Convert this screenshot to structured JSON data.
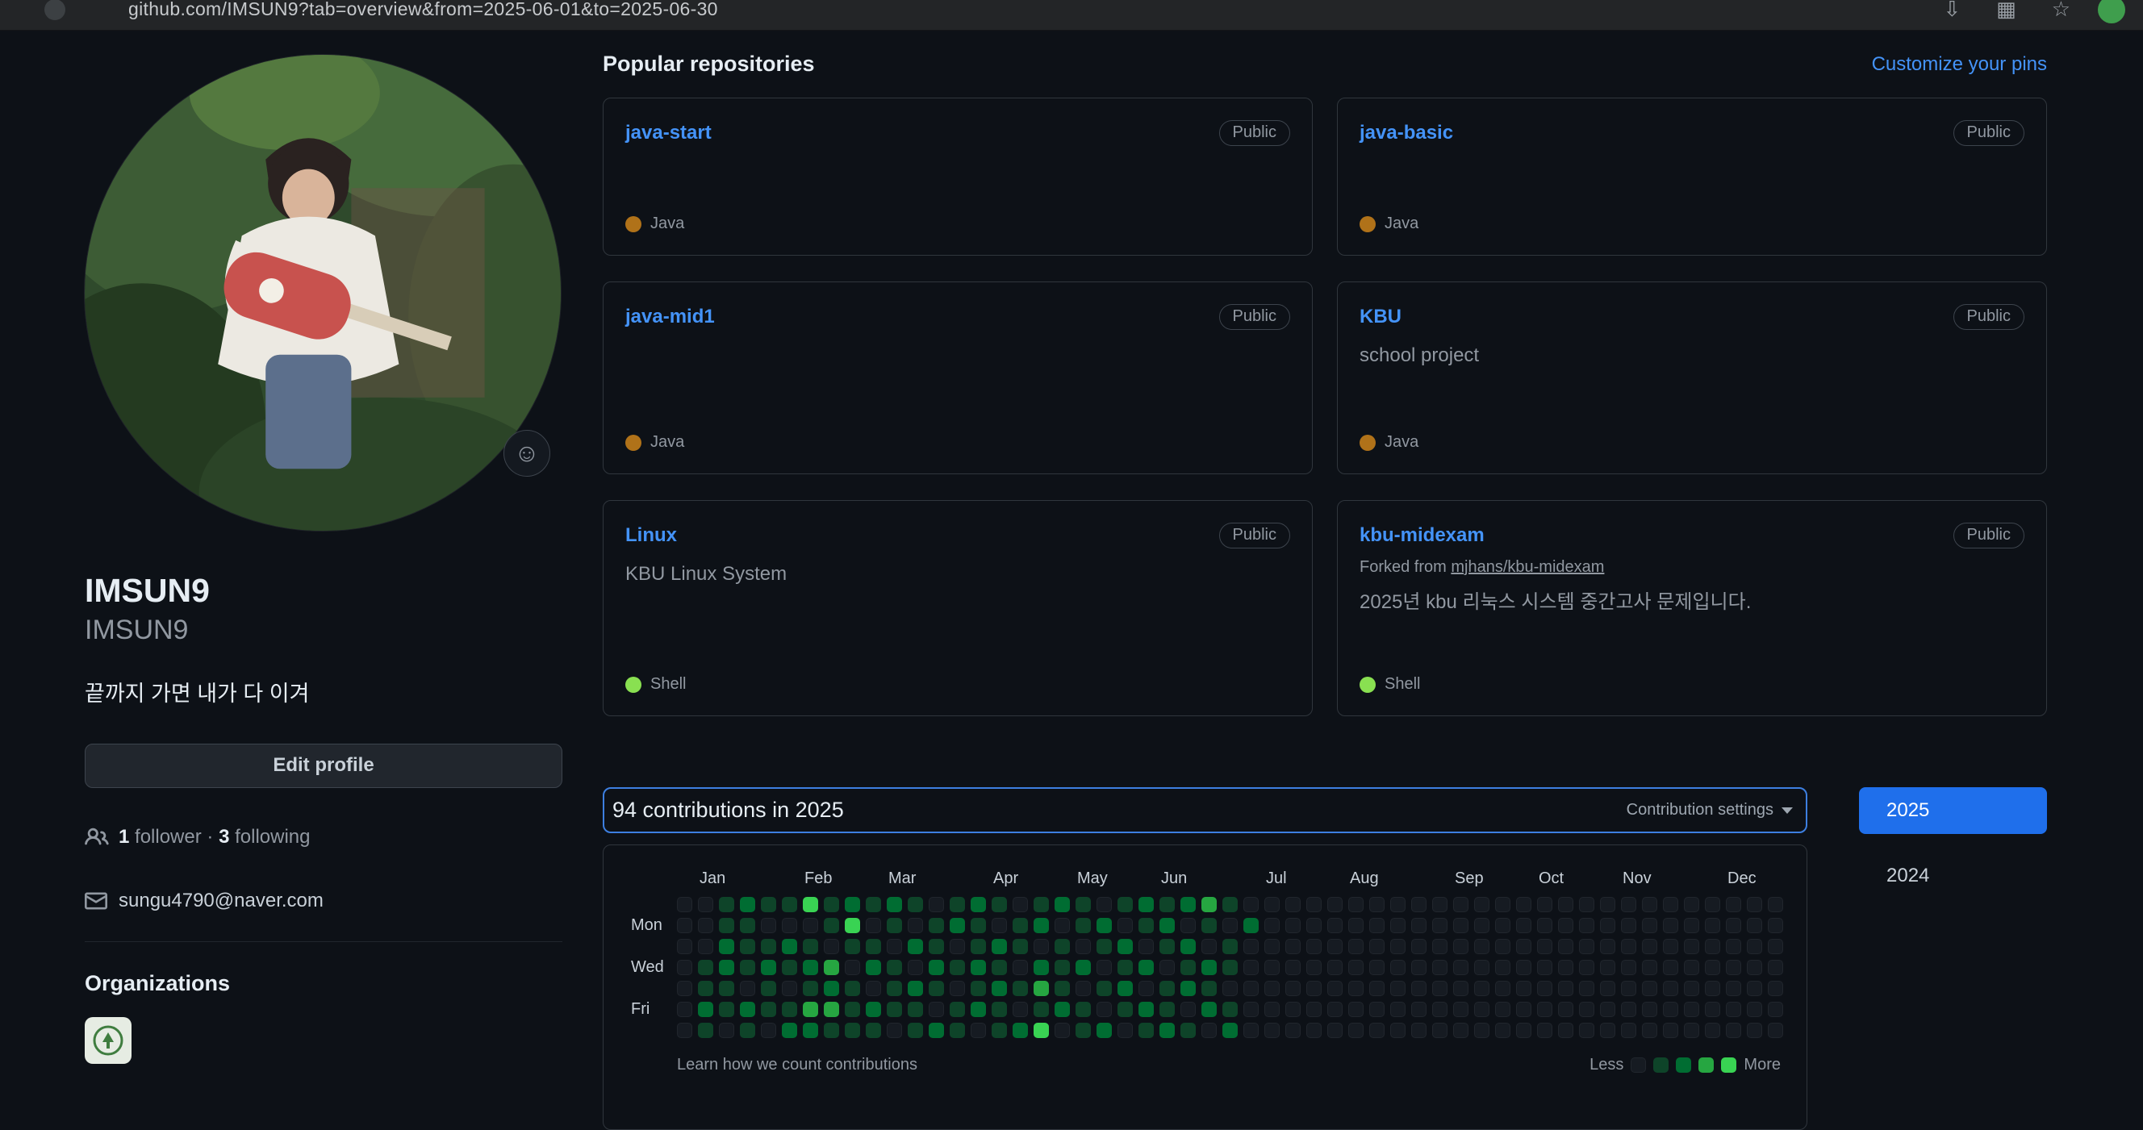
{
  "browser": {
    "url": "github.com/IMSUN9?tab=overview&from=2025-06-01&to=2025-06-30"
  },
  "profile": {
    "name": "IMSUN9",
    "login": "IMSUN9",
    "bio": "끝까지 가면 내가 다 이겨",
    "edit_button": "Edit profile",
    "follower_count": "1",
    "follower_label": "follower",
    "dot_separator": "·",
    "following_count": "3",
    "following_label": "following",
    "email": "sungu4790@naver.com",
    "organizations_title": "Organizations",
    "smiley": "☺"
  },
  "main": {
    "popular_title": "Popular repositories",
    "customize_pins": "Customize your pins",
    "repos": [
      {
        "name": "java-start",
        "visibility": "Public",
        "description": "",
        "language": "Java",
        "language_color": "#b07219"
      },
      {
        "name": "java-basic",
        "visibility": "Public",
        "description": "",
        "language": "Java",
        "language_color": "#b07219"
      },
      {
        "name": "java-mid1",
        "visibility": "Public",
        "description": "",
        "language": "Java",
        "language_color": "#b07219"
      },
      {
        "name": "KBU",
        "visibility": "Public",
        "description": "school project",
        "language": "Java",
        "language_color": "#b07219"
      },
      {
        "name": "Linux",
        "visibility": "Public",
        "description": "KBU Linux System",
        "language": "Shell",
        "language_color": "#89e051"
      },
      {
        "name": "kbu-midexam",
        "visibility": "Public",
        "forked_from": "Forked from ",
        "forked_repo": "mjhans/kbu-midexam",
        "description": "2025년 kbu 리눅스 시스템 중간고사 문제입니다.",
        "language": "Shell",
        "language_color": "#89e051"
      }
    ]
  },
  "contributions": {
    "title": "94 contributions in 2025",
    "total": 94,
    "year": "2025",
    "settings_label": "Contribution settings",
    "learn_link": "Learn how we count contributions",
    "less_label": "Less",
    "more_label": "More",
    "day_labels": [
      "Mon",
      "Wed",
      "Fri"
    ],
    "months": [
      {
        "label": "Jan",
        "week": 1
      },
      {
        "label": "Feb",
        "week": 6
      },
      {
        "label": "Mar",
        "week": 10
      },
      {
        "label": "Apr",
        "week": 15
      },
      {
        "label": "May",
        "week": 19
      },
      {
        "label": "Jun",
        "week": 23
      },
      {
        "label": "Jul",
        "week": 28
      },
      {
        "label": "Aug",
        "week": 32
      },
      {
        "label": "Sep",
        "week": 37
      },
      {
        "label": "Oct",
        "week": 41
      },
      {
        "label": "Nov",
        "week": 45
      },
      {
        "label": "Dec",
        "week": 50
      }
    ],
    "palette": [
      "#161b22",
      "#0e4429",
      "#006d32",
      "#26a641",
      "#39d353"
    ],
    "weeks": [
      "0000000",
      "0001121",
      "1122110",
      "2111021",
      "1012110",
      "1021012",
      "4012132",
      "1103231",
      "2410111",
      "1012021",
      "2101110",
      "1020211",
      "0112102",
      "1201011",
      "2112120",
      "1021211",
      "0110102",
      "1202314",
      "2011120",
      "1102011",
      "0210102",
      "1021210",
      "2102021",
      "1210112",
      "2021201",
      "3102120",
      "1011012",
      "0200000",
      "0000000",
      "0000000",
      "0000000",
      "0000000",
      "0000000",
      "0000000",
      "0000000",
      "0000000",
      "0000000",
      "0000000",
      "0000000",
      "0000000",
      "0000000",
      "0000000",
      "0000000",
      "0000000",
      "0000000",
      "0000000",
      "0000000",
      "0000000",
      "0000000",
      "0000000",
      "0000000",
      "0000000",
      "0000000"
    ],
    "years": [
      "2025",
      "2024"
    ]
  }
}
